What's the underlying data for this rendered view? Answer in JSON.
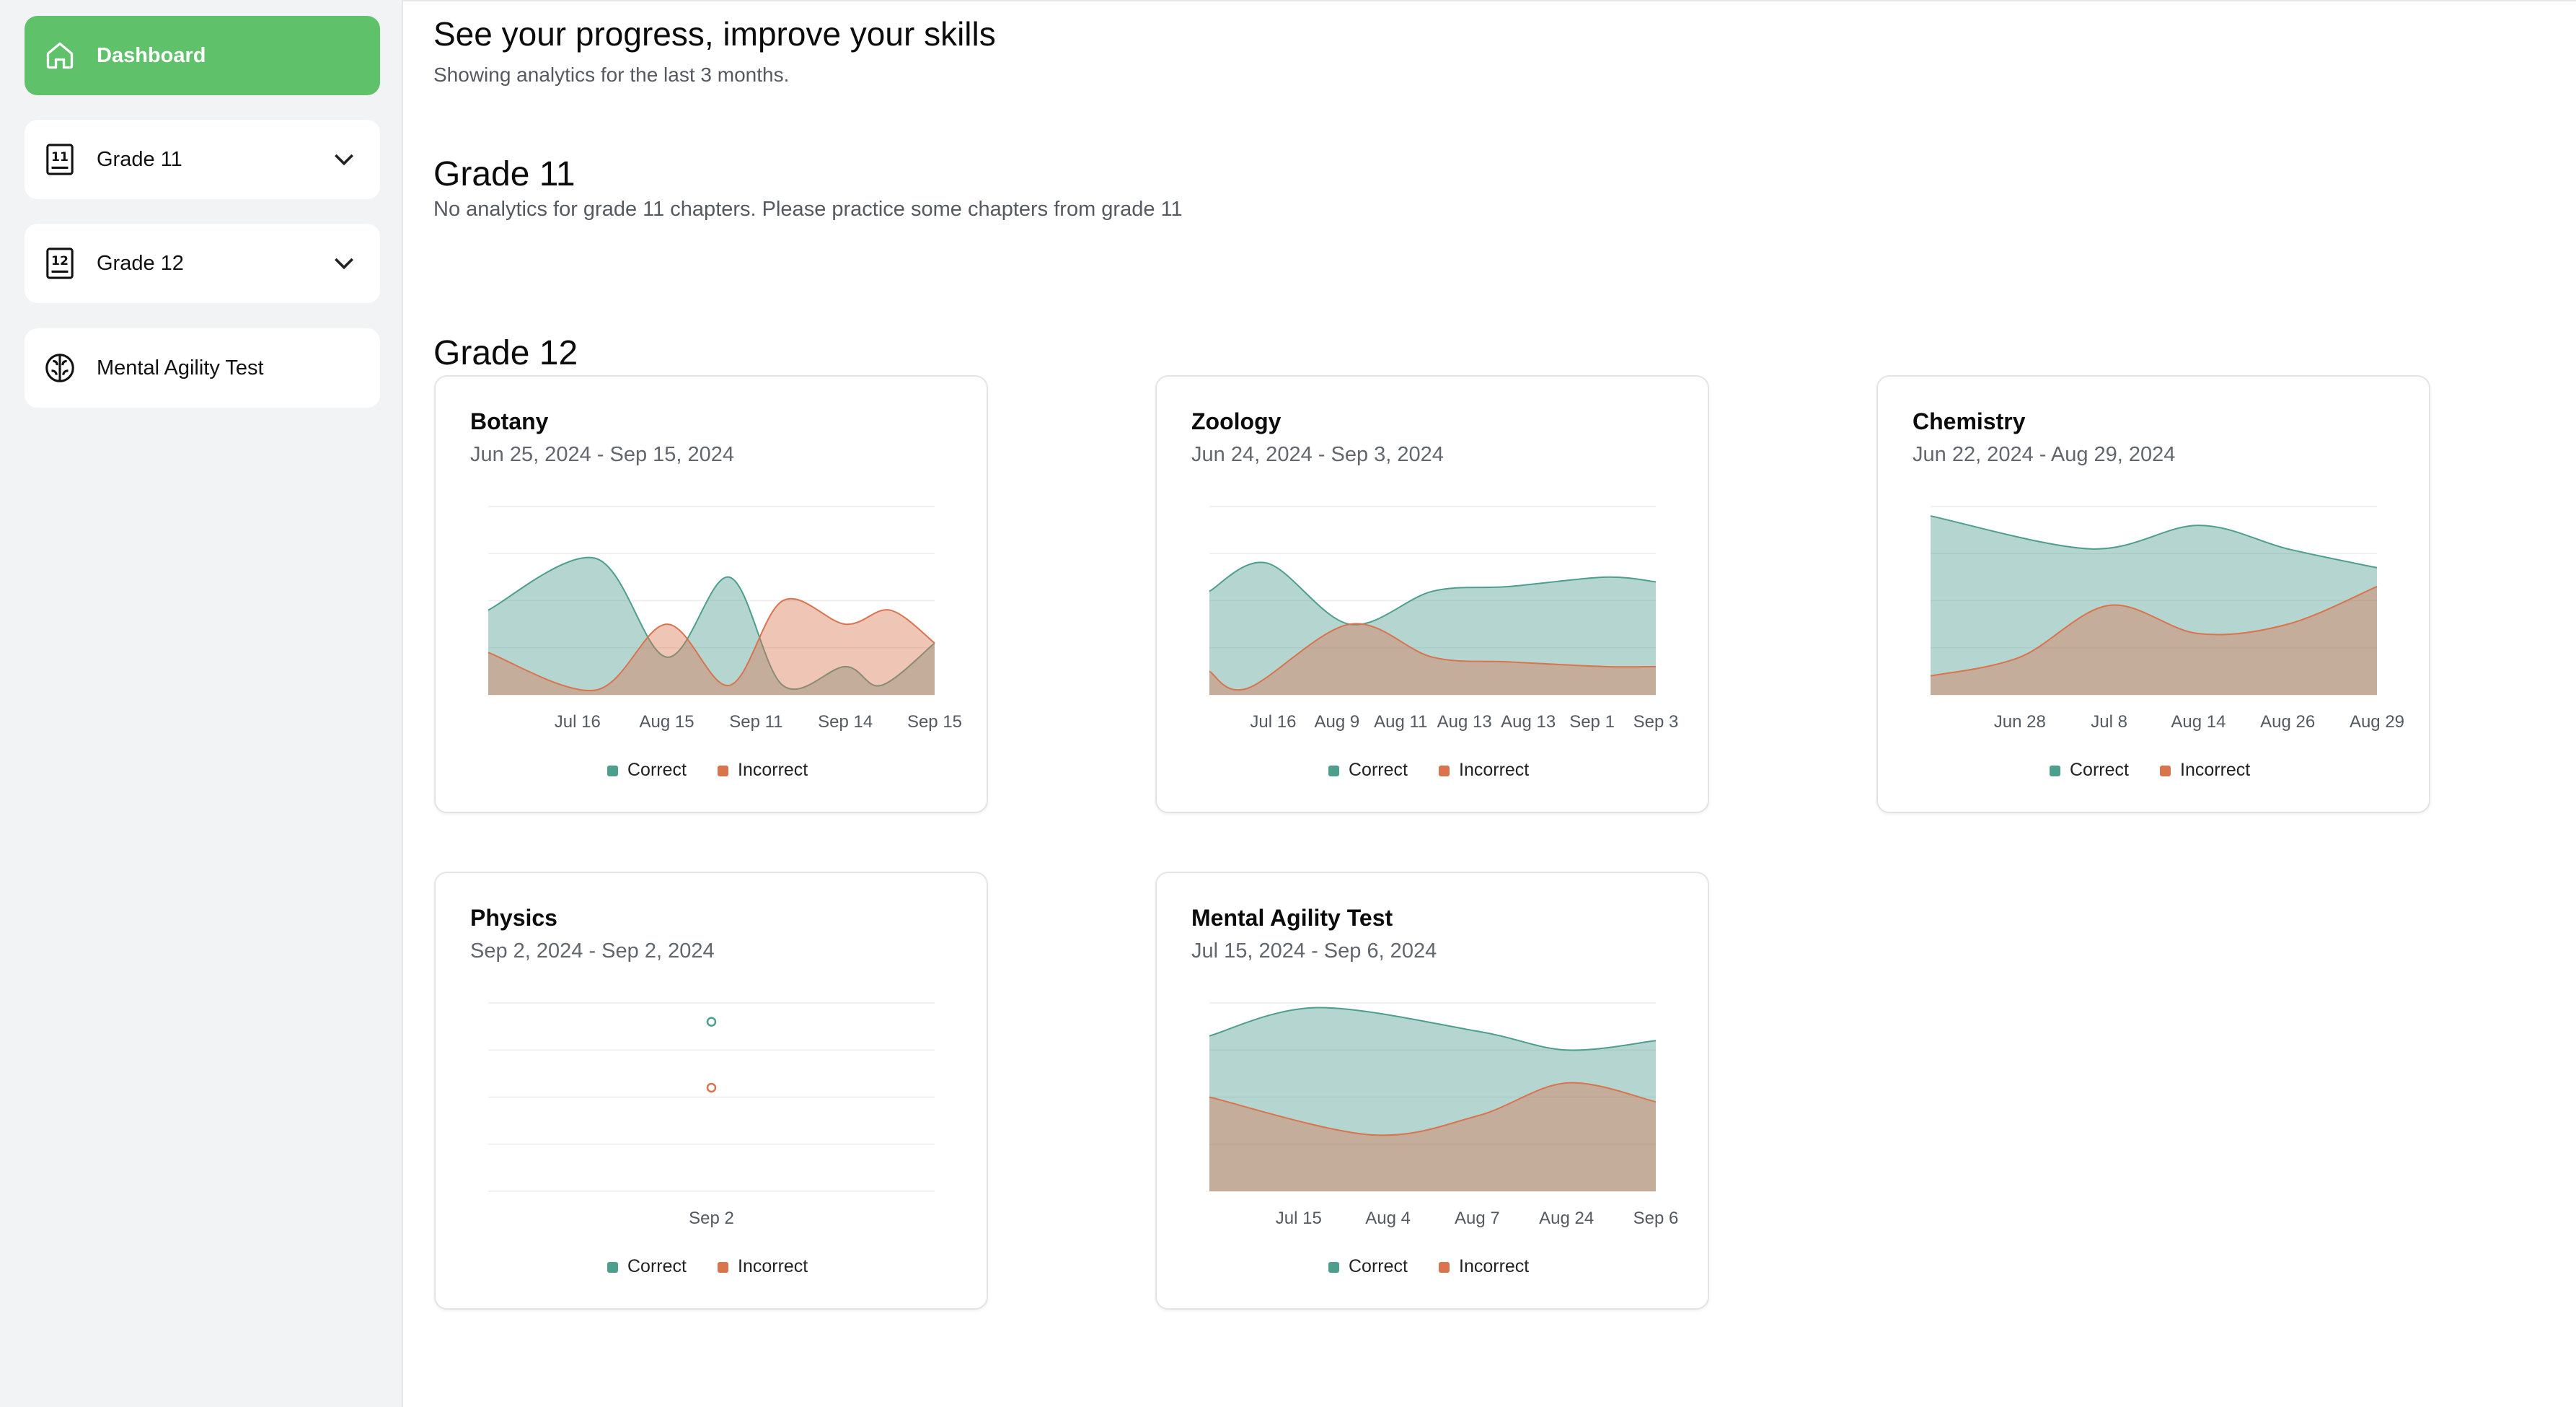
{
  "sidebar": {
    "items": [
      {
        "label": "Dashboard",
        "icon": "home-icon"
      },
      {
        "label": "Grade 11",
        "icon": "grade-11-icon"
      },
      {
        "label": "Grade 12",
        "icon": "grade-12-icon"
      },
      {
        "label": "Mental Agility Test",
        "icon": "brain-icon"
      }
    ]
  },
  "header": {
    "title": "See your progress, improve your skills",
    "subtitle": "Showing analytics for the last 3 months."
  },
  "grade11": {
    "title": "Grade 11",
    "message": "No analytics for grade 11 chapters. Please practice some chapters from grade 11"
  },
  "grade12": {
    "title": "Grade 12"
  },
  "colors": {
    "accent": "#5fc26a",
    "correct": "#4e9e8e",
    "incorrect": "#d9744f"
  },
  "chart_data": [
    {
      "type": "area",
      "title": "Botany",
      "date_range": "Jun 25, 2024 - Sep 15, 2024",
      "categories": [
        "",
        "Jul 16",
        "Aug 15",
        "Sep 11",
        "Sep 14",
        "Sep 15"
      ],
      "x": [
        0,
        1,
        2,
        3,
        4,
        5
      ],
      "series": [
        {
          "name": "Correct",
          "values": [
            [
              0,
              9
            ],
            [
              1.2,
              14.5
            ],
            [
              2,
              4
            ],
            [
              2.7,
              12.5
            ],
            [
              3.3,
              1
            ],
            [
              4,
              3
            ],
            [
              4.4,
              1
            ],
            [
              5,
              5.5
            ]
          ]
        },
        {
          "name": "Incorrect",
          "values": [
            [
              0,
              4.5
            ],
            [
              1.2,
              0.5
            ],
            [
              2,
              7.5
            ],
            [
              2.7,
              1
            ],
            [
              3.3,
              10
            ],
            [
              4,
              7.5
            ],
            [
              4.5,
              9
            ],
            [
              5,
              5.5
            ]
          ]
        }
      ],
      "ylim": [
        0,
        20
      ],
      "legend": [
        "Correct",
        "Incorrect"
      ]
    },
    {
      "type": "area",
      "title": "Zoology",
      "date_range": "Jun 24, 2024 - Sep 3, 2024",
      "categories": [
        "",
        "Jul 16",
        "Aug 9",
        "Aug 11",
        "Aug 13",
        "Aug 13",
        "Sep 1",
        "Sep 3"
      ],
      "x": [
        0,
        1,
        2,
        3,
        4,
        5,
        6,
        7
      ],
      "series": [
        {
          "name": "Correct",
          "values": [
            [
              0,
              11
            ],
            [
              0.9,
              14
            ],
            [
              2.2,
              7.5
            ],
            [
              3.5,
              11
            ],
            [
              4.7,
              11.5
            ],
            [
              6.2,
              12.5
            ],
            [
              7,
              12
            ]
          ]
        },
        {
          "name": "Incorrect",
          "values": [
            [
              0,
              2.5
            ],
            [
              0.6,
              0.7
            ],
            [
              2.2,
              7.5
            ],
            [
              3.5,
              4
            ],
            [
              4.7,
              3.5
            ],
            [
              6.2,
              3
            ],
            [
              7,
              3
            ]
          ]
        }
      ],
      "ylim": [
        0,
        20
      ],
      "legend": [
        "Correct",
        "Incorrect"
      ]
    },
    {
      "type": "area",
      "title": "Chemistry",
      "date_range": "Jun 22, 2024 - Aug 29, 2024",
      "categories": [
        "",
        "Jun 28",
        "Jul 8",
        "Aug 14",
        "Aug 26",
        "Aug 29"
      ],
      "x": [
        0,
        1,
        2,
        3,
        4,
        5
      ],
      "series": [
        {
          "name": "Correct",
          "values": [
            [
              0,
              19
            ],
            [
              1.8,
              15.5
            ],
            [
              3,
              18
            ],
            [
              4,
              15.5
            ],
            [
              5,
              13.5
            ]
          ]
        },
        {
          "name": "Incorrect",
          "values": [
            [
              0,
              2
            ],
            [
              1,
              4
            ],
            [
              2,
              9.5
            ],
            [
              3,
              6.5
            ],
            [
              4,
              7.5
            ],
            [
              5,
              11.5
            ]
          ]
        }
      ],
      "ylim": [
        0,
        20
      ],
      "legend": [
        "Correct",
        "Incorrect"
      ]
    },
    {
      "type": "scatter",
      "title": "Physics",
      "date_range": "Sep 2, 2024 - Sep 2, 2024",
      "categories": [
        "Sep 2"
      ],
      "series": [
        {
          "name": "Correct",
          "values": [
            18
          ]
        },
        {
          "name": "Incorrect",
          "values": [
            11
          ]
        }
      ],
      "ylim": [
        0,
        20
      ],
      "legend": [
        "Correct",
        "Incorrect"
      ]
    },
    {
      "type": "area",
      "title": "Mental Agility Test",
      "date_range": "Jul 15, 2024 - Sep 6, 2024",
      "categories": [
        "",
        "Jul 15",
        "Aug 4",
        "Aug 7",
        "Aug 24",
        "Sep 6"
      ],
      "x": [
        0,
        1,
        2,
        3,
        4,
        5
      ],
      "series": [
        {
          "name": "Correct",
          "values": [
            [
              0,
              16.5
            ],
            [
              1.2,
              19.5
            ],
            [
              3,
              17
            ],
            [
              4,
              15
            ],
            [
              5,
              16
            ]
          ]
        },
        {
          "name": "Incorrect",
          "values": [
            [
              0,
              10
            ],
            [
              1.8,
              6
            ],
            [
              3,
              8
            ],
            [
              4,
              11.5
            ],
            [
              5,
              9.5
            ]
          ]
        }
      ],
      "ylim": [
        0,
        20
      ],
      "legend": [
        "Correct",
        "Incorrect"
      ]
    }
  ]
}
